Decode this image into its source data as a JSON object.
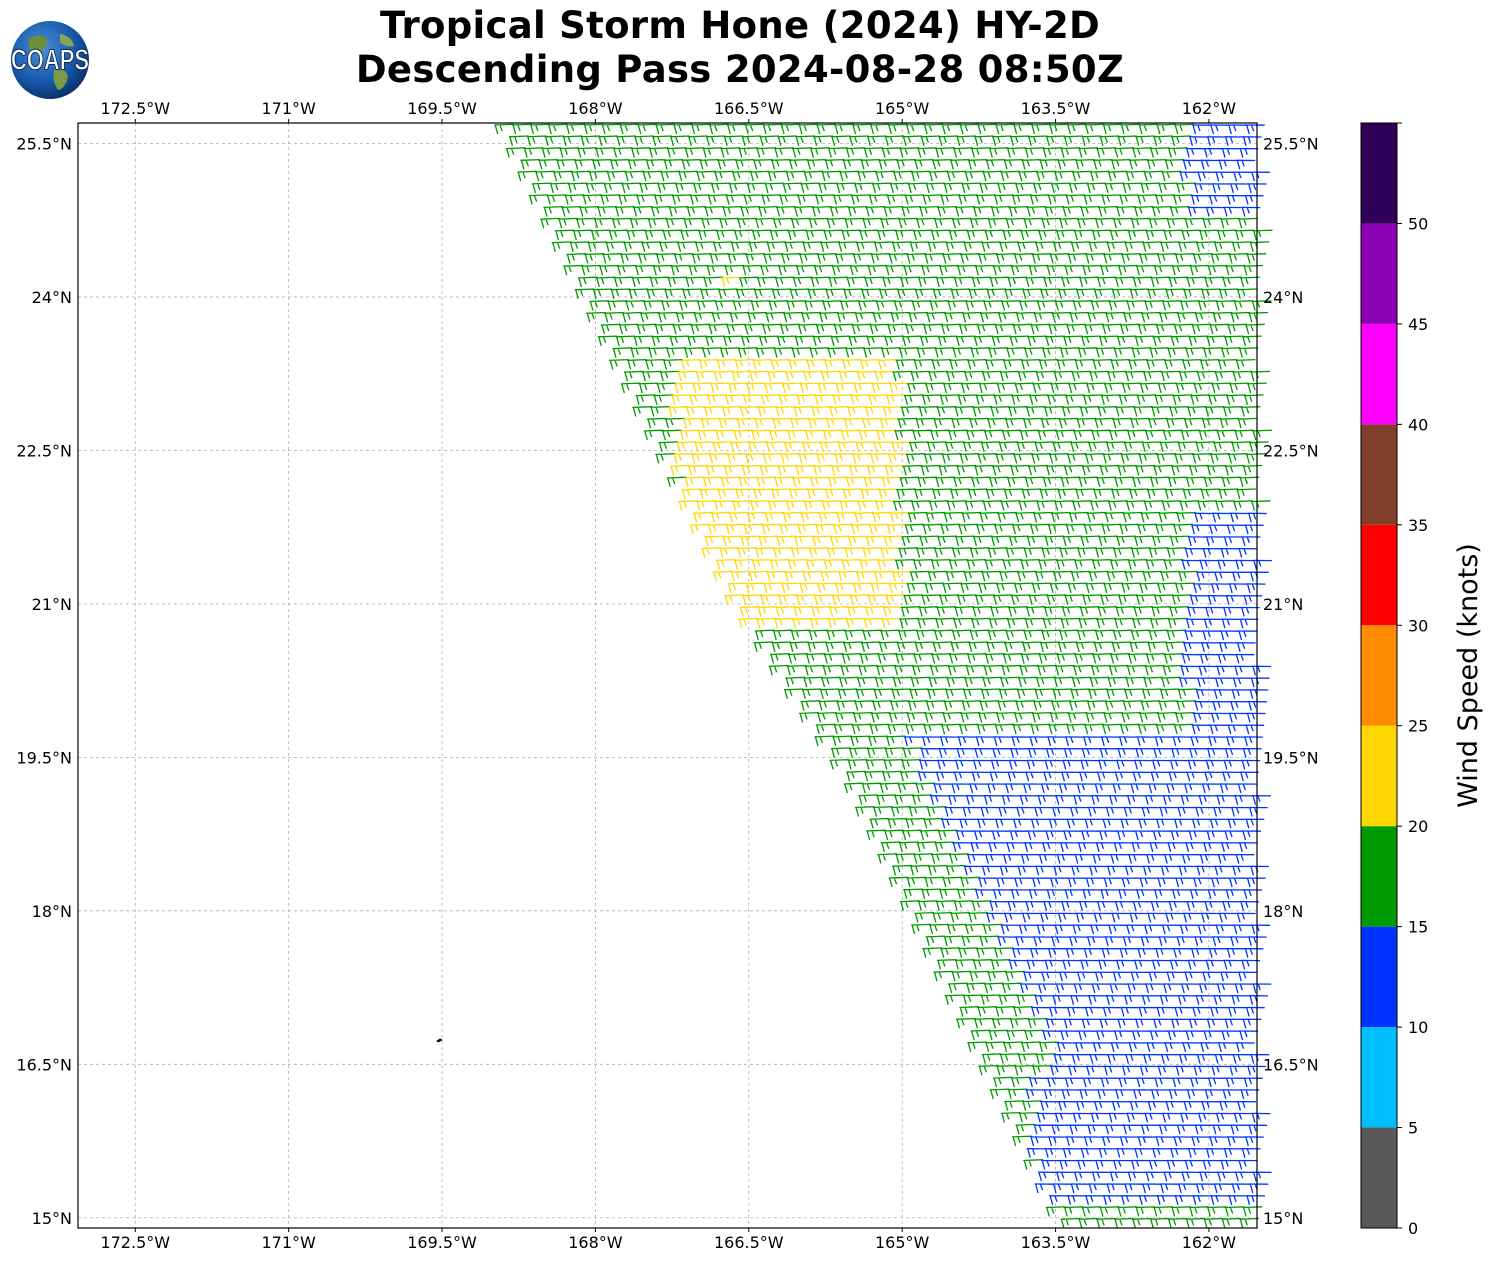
{
  "title": {
    "line1": "Tropical Storm Hone (2024) HY-2D",
    "line2": "Descending Pass 2024-08-28 08:50Z"
  },
  "logo": {
    "text": "COAPS",
    "icon": "globe-logo-icon"
  },
  "chart_data": {
    "type": "wind-barb-map",
    "title": "Tropical Storm Hone (2024) HY-2D Descending Pass 2024-08-28 08:50Z",
    "x_ticks": [
      "172.5°W",
      "171°W",
      "169.5°W",
      "168°W",
      "166.5°W",
      "165°W",
      "163.5°W",
      "162°W"
    ],
    "x_tick_values": [
      -172.5,
      -171,
      -169.5,
      -168,
      -166.5,
      -165,
      -163.5,
      -162
    ],
    "y_ticks": [
      "25.5°N",
      "24°N",
      "22.5°N",
      "21°N",
      "19.5°N",
      "18°N",
      "16.5°N",
      "15°N"
    ],
    "y_tick_values": [
      25.5,
      24,
      22.5,
      21,
      19.5,
      18,
      16.5,
      15
    ],
    "xlim": [
      -173.06,
      -161.53
    ],
    "ylim": [
      14.9,
      25.7
    ],
    "grid": true,
    "swath": {
      "description": "HY-2D descending swath over the eastern part of the map",
      "west_edge": [
        [
          -169.0,
          25.7
        ],
        [
          -166.7,
          21.0
        ],
        [
          -165.6,
          19.3
        ],
        [
          -163.5,
          14.9
        ]
      ],
      "east_edge": [
        [
          -161.53,
          25.7
        ],
        [
          -161.53,
          14.9
        ]
      ]
    },
    "speed_regions": [
      {
        "name": "yellow core",
        "bin": "20-25",
        "lon": [
          -167.3,
          -165.1
        ],
        "lat": [
          20.8,
          23.4
        ]
      },
      {
        "name": "yellow patch north",
        "bin": "20-25",
        "lon": [
          -166.8,
          -166.6
        ],
        "lat": [
          24.1,
          24.3
        ]
      },
      {
        "name": "blue south-east",
        "bin": "10-15",
        "lon": [
          -165.4,
          -161.53
        ],
        "lat": [
          15.2,
          19.8
        ]
      },
      {
        "name": "blue east edge",
        "bin": "10-15",
        "lon": [
          -162.3,
          -161.53
        ],
        "lat": [
          19.8,
          22.0
        ]
      },
      {
        "name": "blue north-east corner",
        "bin": "10-15",
        "lon": [
          -162.3,
          -161.53
        ],
        "lat": [
          24.8,
          25.7
        ]
      }
    ],
    "default_bin": "15-20",
    "colorbar": {
      "label": "Wind Speed (knots)",
      "ticks": [
        0,
        5,
        10,
        15,
        20,
        25,
        30,
        35,
        40,
        45,
        50
      ],
      "bins": [
        {
          "from": 0,
          "to": 5,
          "color": "#595959"
        },
        {
          "from": 5,
          "to": 10,
          "color": "#00bfff"
        },
        {
          "from": 10,
          "to": 15,
          "color": "#0033ff"
        },
        {
          "from": 15,
          "to": 20,
          "color": "#009900"
        },
        {
          "from": 20,
          "to": 25,
          "color": "#ffd700"
        },
        {
          "from": 25,
          "to": 30,
          "color": "#ff8c00"
        },
        {
          "from": 30,
          "to": 35,
          "color": "#ff0000"
        },
        {
          "from": 35,
          "to": 40,
          "color": "#7f3f2a"
        },
        {
          "from": 40,
          "to": 45,
          "color": "#ff00ff"
        },
        {
          "from": 45,
          "to": 50,
          "color": "#8b00b3"
        },
        {
          "from": 50,
          "to": 55,
          "color": "#2e0057"
        }
      ]
    }
  }
}
